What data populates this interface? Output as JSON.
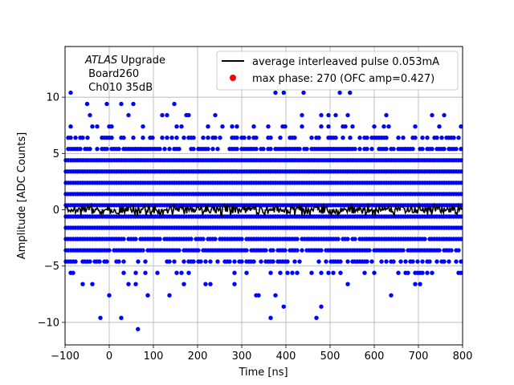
{
  "chart_data": {
    "type": "scatter",
    "xlabel": "Time [ns]",
    "ylabel": "Amplitude [ADC Counts]",
    "xlim": [
      -100,
      800
    ],
    "ylim": [
      -12,
      14.5
    ],
    "xticks": [
      -100,
      0,
      100,
      200,
      300,
      400,
      500,
      600,
      700,
      800
    ],
    "yticks": [
      -10,
      -5,
      0,
      5,
      10
    ],
    "grid": true,
    "legend_position": "top-right",
    "annotation": {
      "italic": "ATLAS",
      "line1_rest": " Upgrade",
      "line2": " Board260",
      "line3": " Ch010 35dB"
    },
    "series": [
      {
        "name": "average interleaved pulse 0.053mA",
        "kind": "line",
        "color": "#000000",
        "x": [
          -100,
          800
        ],
        "y": [
          0,
          0
        ],
        "noise_amplitude": 0.6
      },
      {
        "name": "",
        "kind": "scatter",
        "color": "#0000ff",
        "levels": [
          -10.6,
          -9.6,
          -8.6,
          -7.6,
          -6.6,
          -5.6,
          -4.6,
          -3.6,
          -2.6,
          -1.6,
          -0.6,
          0.4,
          1.4,
          2.4,
          3.4,
          4.4,
          5.4,
          6.4,
          7.4,
          8.4,
          9.4,
          10.4
        ],
        "level_density": [
          0.002,
          0.004,
          0.005,
          0.03,
          0.07,
          0.22,
          0.5,
          0.85,
          0.95,
          1.0,
          1.0,
          1.0,
          1.0,
          1.0,
          1.0,
          1.0,
          0.7,
          0.45,
          0.2,
          0.09,
          0.02,
          0.008
        ],
        "outliers": [
          {
            "x": -20,
            "y": -9.6
          },
          {
            "x": 65,
            "y": -10.6
          },
          {
            "x": 395,
            "y": -8.6
          },
          {
            "x": 480,
            "y": -8.6
          },
          {
            "x": 395,
            "y": 10.4
          },
          {
            "x": 440,
            "y": 10.4
          },
          {
            "x": 522,
            "y": 10.4
          },
          {
            "x": 545,
            "y": 10.4
          },
          {
            "x": -50,
            "y": 9.4
          }
        ]
      },
      {
        "name": "max phase: 270 (OFC amp=0.427)",
        "kind": "marker",
        "color": "#ff0000",
        "x": [],
        "y": []
      }
    ]
  }
}
